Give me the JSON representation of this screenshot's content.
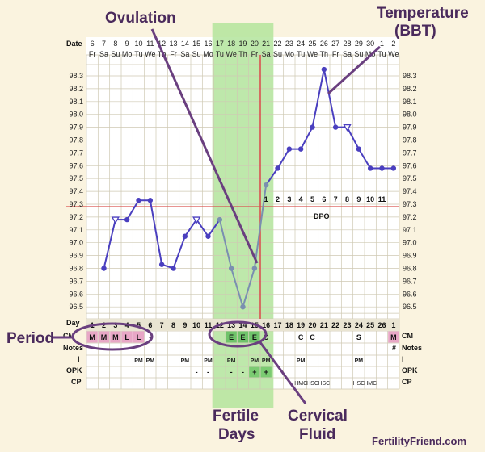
{
  "header": {
    "date_label": "Date",
    "day_label": "Day"
  },
  "dates": [
    "6",
    "7",
    "8",
    "9",
    "10",
    "11",
    "12",
    "13",
    "14",
    "15",
    "16",
    "17",
    "18",
    "19",
    "20",
    "21",
    "22",
    "23",
    "24",
    "25",
    "26",
    "27",
    "28",
    "29",
    "30",
    "1",
    "2"
  ],
  "weekdays": [
    "Fr",
    "Sa",
    "Su",
    "Mo",
    "Tu",
    "We",
    "Th",
    "Fr",
    "Sa",
    "Su",
    "Mo",
    "Tu",
    "We",
    "Th",
    "Fr",
    "Sa",
    "Su",
    "Mo",
    "Tu",
    "We",
    "Th",
    "Fr",
    "Sa",
    "Su",
    "Mo",
    "Tu",
    "We"
  ],
  "cycle_days": [
    "1",
    "2",
    "3",
    "4",
    "5",
    "6",
    "7",
    "8",
    "9",
    "10",
    "11",
    "12",
    "13",
    "14",
    "15",
    "16",
    "17",
    "18",
    "19",
    "20",
    "21",
    "22",
    "23",
    "24",
    "25",
    "26",
    "1"
  ],
  "row_labels": {
    "cm": "CM",
    "notes": "Notes",
    "i": "I",
    "opk": "OPK",
    "cp": "CP"
  },
  "row_labels_right": {
    "cm": "CM",
    "notes": "Notes",
    "i": "I",
    "opk": "OPK",
    "cp": "CP",
    "hash": "#"
  },
  "period_cells": [
    {
      "day_index": 0,
      "text": "M"
    },
    {
      "day_index": 1,
      "text": "M"
    },
    {
      "day_index": 2,
      "text": "M"
    },
    {
      "day_index": 3,
      "text": "L"
    },
    {
      "day_index": 4,
      "text": "L"
    },
    {
      "day_index": 5,
      "text": "•"
    },
    {
      "day_index": 26,
      "text": "M"
    }
  ],
  "cm_cells": [
    {
      "day_index": 12,
      "text": "E"
    },
    {
      "day_index": 13,
      "text": "E"
    },
    {
      "day_index": 14,
      "text": "E"
    },
    {
      "day_index": 15,
      "text": "C"
    },
    {
      "day_index": 18,
      "text": "C"
    },
    {
      "day_index": 19,
      "text": "C"
    },
    {
      "day_index": 23,
      "text": "S"
    }
  ],
  "intercourse_cells": [
    {
      "day_index": 4,
      "text": "PM"
    },
    {
      "day_index": 5,
      "text": "PM"
    },
    {
      "day_index": 8,
      "text": "PM"
    },
    {
      "day_index": 10,
      "text": "PM"
    },
    {
      "day_index": 12,
      "text": "PM"
    },
    {
      "day_index": 14,
      "text": "PM"
    },
    {
      "day_index": 15,
      "text": "PM"
    },
    {
      "day_index": 18,
      "text": "PM"
    },
    {
      "day_index": 23,
      "text": "PM"
    }
  ],
  "opk_cells": [
    {
      "day_index": 9,
      "text": "-"
    },
    {
      "day_index": 10,
      "text": "-"
    },
    {
      "day_index": 12,
      "text": "-"
    },
    {
      "day_index": 13,
      "text": "-"
    },
    {
      "day_index": 14,
      "text": "+"
    },
    {
      "day_index": 15,
      "text": "+"
    }
  ],
  "cp_cells": [
    {
      "day_index": 18,
      "text": "HMC"
    },
    {
      "day_index": 19,
      "text": "HSC"
    },
    {
      "day_index": 20,
      "text": "HSC"
    },
    {
      "day_index": 23,
      "text": "HSC"
    },
    {
      "day_index": 24,
      "text": "HMC"
    }
  ],
  "dpo_numbers": [
    "1",
    "2",
    "3",
    "4",
    "5",
    "6",
    "7",
    "8",
    "9",
    "10",
    "11"
  ],
  "dpo_label": "DPO",
  "annotations": {
    "ovulation": "Ovulation",
    "temperature_line1": "Temperature",
    "temperature_line2": "(BBT)",
    "period": "Period",
    "fertile_line1": "Fertile",
    "fertile_line2": "Days",
    "cervical_line1": "Cervical",
    "cervical_line2": "Fluid"
  },
  "brand": "FertilityFriend.com",
  "colors": {
    "background": "#faf3df",
    "fertile": "#b3e49c",
    "line": "#4a3fbf",
    "coverline": "#d9534f",
    "annotation": "#4a2a5c",
    "period": "#e8a7c6",
    "cm_egg": "#6fc36a"
  },
  "chart_data": {
    "type": "line",
    "title": "",
    "x": [
      "1",
      "2",
      "3",
      "4",
      "5",
      "6",
      "7",
      "8",
      "9",
      "10",
      "11",
      "12",
      "13",
      "14",
      "15",
      "16",
      "17",
      "18",
      "19",
      "20",
      "21",
      "22",
      "23",
      "24",
      "25",
      "26",
      "1"
    ],
    "y_ticks": [
      "96.5",
      "96.6",
      "96.7",
      "96.8",
      "96.9",
      "97.0",
      "97.1",
      "97.2",
      "97.3",
      "97.4",
      "97.5",
      "97.6",
      "97.7",
      "97.8",
      "97.9",
      "98.0",
      "98.1",
      "98.2",
      "98.3"
    ],
    "ylim": [
      96.4,
      98.4
    ],
    "series": [
      {
        "values": [
          null,
          96.8,
          97.18,
          97.18,
          97.33,
          97.33,
          96.83,
          96.8,
          97.05,
          97.18,
          97.05,
          97.18,
          96.8,
          96.5,
          96.8,
          97.45,
          97.58,
          97.73,
          97.73,
          97.9,
          98.35,
          97.9,
          97.9,
          97.73,
          97.58,
          97.58,
          97.58
        ],
        "open_markers_at": [
          2,
          9,
          22
        ]
      }
    ],
    "coverline": 97.28,
    "ovulation_day_index": 14,
    "fertile_range": [
      11,
      15
    ],
    "grid": true
  }
}
